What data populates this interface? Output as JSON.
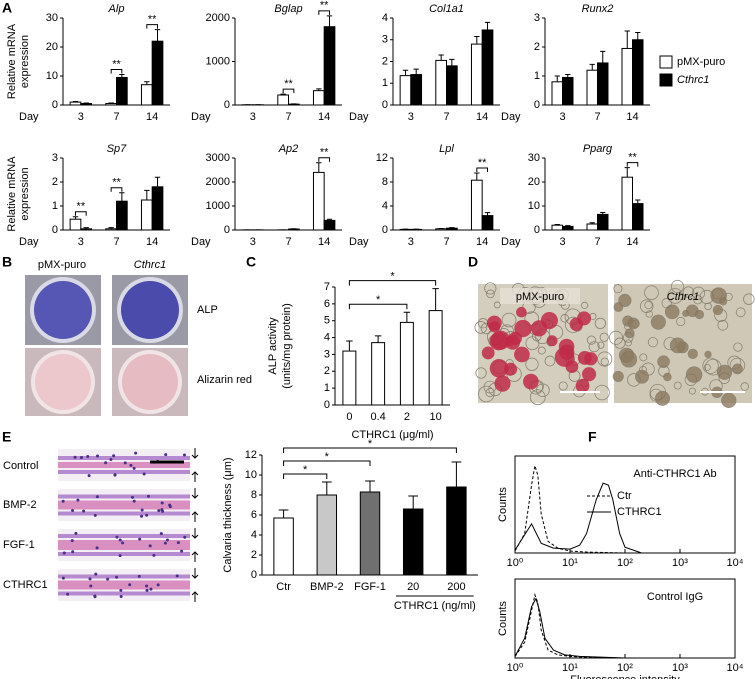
{
  "panel_labels": [
    "A",
    "B",
    "C",
    "D",
    "E",
    "F"
  ],
  "panel_b": {
    "columns": [
      "pMX-puro",
      "Cthrc1"
    ],
    "rows": [
      "ALP",
      "Alizarin red"
    ]
  },
  "panel_d": {
    "columns": [
      "pMX-puro",
      "Cthrc1"
    ]
  },
  "panel_e": {
    "rows": [
      "Control",
      "BMP-2",
      "FGF-1",
      "CTHRC1"
    ]
  },
  "chart_data": [
    {
      "type": "bar",
      "title": "Alp",
      "title_style": "italic",
      "xlabel": "Day",
      "ylabel": [
        "Relative mRNA",
        "expression"
      ],
      "categories": [
        "3",
        "7",
        "14"
      ],
      "ylim": [
        0,
        30
      ],
      "yticks": [
        0,
        10,
        20,
        30
      ],
      "series": [
        {
          "name": "pMX-puro",
          "color": "#ffffff",
          "values": [
            1,
            0.5,
            7
          ],
          "errors": [
            0.2,
            0.2,
            1
          ]
        },
        {
          "name": "Cthrc1",
          "italic": true,
          "color": "#000000",
          "values": [
            0.5,
            9.5,
            22
          ],
          "errors": [
            0.2,
            1,
            4
          ]
        }
      ],
      "annotations": [
        {
          "text": "**",
          "category": "7"
        },
        {
          "text": "**",
          "category": "14"
        }
      ]
    },
    {
      "type": "bar",
      "title": "Bglap",
      "title_style": "italic",
      "xlabel": "Day",
      "categories": [
        "3",
        "7",
        "14"
      ],
      "ylim": [
        0,
        2000
      ],
      "yticks": [
        0,
        1000,
        2000
      ],
      "series": [
        {
          "color": "#ffffff",
          "values": [
            5,
            230,
            330
          ],
          "errors": [
            2,
            20,
            40
          ]
        },
        {
          "color": "#000000",
          "values": [
            5,
            20,
            1800
          ],
          "errors": [
            2,
            5,
            250
          ]
        }
      ],
      "annotations": [
        {
          "text": "**",
          "category": "7"
        },
        {
          "text": "**",
          "category": "14"
        }
      ]
    },
    {
      "type": "bar",
      "title": "Col1a1",
      "title_style": "italic",
      "xlabel": "Day",
      "categories": [
        "3",
        "7",
        "14"
      ],
      "ylim": [
        0,
        4
      ],
      "yticks": [
        0,
        1,
        2,
        3,
        4
      ],
      "series": [
        {
          "color": "#ffffff",
          "values": [
            1.35,
            2.05,
            2.8
          ],
          "errors": [
            0.25,
            0.25,
            0.35
          ]
        },
        {
          "color": "#000000",
          "values": [
            1.4,
            1.8,
            3.45
          ],
          "errors": [
            0.25,
            0.3,
            0.35
          ]
        }
      ]
    },
    {
      "type": "bar",
      "title": "Runx2",
      "title_style": "italic",
      "xlabel": "Day",
      "categories": [
        "3",
        "7",
        "14"
      ],
      "ylim": [
        0,
        3
      ],
      "yticks": [
        0,
        1,
        2,
        3
      ],
      "series": [
        {
          "color": "#ffffff",
          "values": [
            0.8,
            1.2,
            1.95
          ],
          "errors": [
            0.2,
            0.2,
            0.6
          ]
        },
        {
          "color": "#000000",
          "values": [
            0.95,
            1.45,
            2.25
          ],
          "errors": [
            0.1,
            0.4,
            0.25
          ]
        }
      ]
    },
    {
      "type": "bar",
      "title": "Sp7",
      "title_style": "italic",
      "xlabel": "Day",
      "ylabel": [
        "Relative mRNA",
        "expression"
      ],
      "categories": [
        "3",
        "7",
        "14"
      ],
      "ylim": [
        0,
        3
      ],
      "yticks": [
        0,
        1,
        2,
        3
      ],
      "series": [
        {
          "color": "#ffffff",
          "values": [
            0.45,
            0.05,
            1.25
          ],
          "errors": [
            0.1,
            0.05,
            0.4
          ]
        },
        {
          "color": "#000000",
          "values": [
            0.05,
            1.2,
            1.8
          ],
          "errors": [
            0.05,
            0.35,
            0.4
          ]
        }
      ],
      "annotations": [
        {
          "text": "**",
          "category": "3"
        },
        {
          "text": "**",
          "category": "7"
        }
      ]
    },
    {
      "type": "bar",
      "title": "Ap2",
      "title_style": "italic",
      "xlabel": "Day",
      "categories": [
        "3",
        "7",
        "14"
      ],
      "ylim": [
        0,
        3000
      ],
      "yticks": [
        0,
        1000,
        2000,
        3000
      ],
      "series": [
        {
          "color": "#ffffff",
          "values": [
            5,
            5,
            2400
          ],
          "errors": [
            2,
            2,
            400
          ]
        },
        {
          "color": "#000000",
          "values": [
            5,
            40,
            400
          ],
          "errors": [
            2,
            10,
            50
          ]
        }
      ],
      "annotations": [
        {
          "text": "**",
          "category": "14"
        }
      ]
    },
    {
      "type": "bar",
      "title": "Lpl",
      "title_style": "italic",
      "xlabel": "Day",
      "categories": [
        "3",
        "7",
        "14"
      ],
      "ylim": [
        0,
        12
      ],
      "yticks": [
        0,
        4,
        8,
        12
      ],
      "series": [
        {
          "color": "#ffffff",
          "values": [
            0.1,
            0.2,
            8.3
          ],
          "errors": [
            0.05,
            0.05,
            1.2
          ]
        },
        {
          "color": "#000000",
          "values": [
            0.1,
            0.3,
            2.4
          ],
          "errors": [
            0.05,
            0.1,
            0.5
          ]
        }
      ],
      "annotations": [
        {
          "text": "**",
          "category": "14"
        }
      ]
    },
    {
      "type": "bar",
      "title": "Pparg",
      "title_style": "italic",
      "xlabel": "Day",
      "categories": [
        "3",
        "7",
        "14"
      ],
      "ylim": [
        0,
        30
      ],
      "yticks": [
        0,
        10,
        20,
        30
      ],
      "series": [
        {
          "color": "#ffffff",
          "values": [
            2,
            2.5,
            22
          ],
          "errors": [
            0.3,
            0.5,
            4
          ]
        },
        {
          "color": "#000000",
          "values": [
            1.5,
            6.5,
            11
          ],
          "errors": [
            0.3,
            0.8,
            1.5
          ]
        }
      ],
      "annotations": [
        {
          "text": "**",
          "category": "14"
        }
      ]
    },
    {
      "type": "bar",
      "xlabel": "CTHRC1 (μg/ml)",
      "ylabel": [
        "ALP activity",
        "(units/mg protein)"
      ],
      "categories": [
        "0",
        "0.4",
        "2",
        "10"
      ],
      "values": [
        3.2,
        3.7,
        4.9,
        5.6
      ],
      "errors": [
        0.6,
        0.4,
        0.6,
        1.3
      ],
      "color": "#ffffff",
      "ylim": [
        0,
        7
      ],
      "yticks": [
        0,
        1,
        2,
        3,
        4,
        5,
        6,
        7
      ],
      "brackets": [
        {
          "text": "*",
          "from": "0",
          "to": "2"
        },
        {
          "text": "*",
          "from": "0",
          "to": "10"
        }
      ]
    },
    {
      "type": "bar",
      "ylabel": [
        "Calvaria thickness (μm)"
      ],
      "categories": [
        "Ctr",
        "BMP-2",
        "FGF-1",
        "20",
        "200"
      ],
      "values": [
        5.7,
        8.0,
        8.3,
        6.6,
        8.8
      ],
      "errors": [
        0.8,
        1.3,
        1.1,
        1.3,
        2.5
      ],
      "colors": [
        "#ffffff",
        "#c8c8c8",
        "#707070",
        "#000000",
        "#000000"
      ],
      "ylim": [
        0,
        12
      ],
      "yticks": [
        0,
        2,
        4,
        6,
        8,
        10,
        12
      ],
      "group_label": {
        "text": "CTHRC1 (ng/ml)",
        "categories": [
          "20",
          "200"
        ]
      },
      "brackets": [
        {
          "text": "*",
          "from": "Ctr",
          "to": "BMP-2"
        },
        {
          "text": "*",
          "from": "Ctr",
          "to": "FGF-1"
        },
        {
          "text": "*",
          "from": "Ctr",
          "to": "200"
        }
      ]
    },
    {
      "type": "line",
      "title": "Anti-CTHRC1 Ab",
      "ylabel": "Counts",
      "xscale": "log",
      "xlim": [
        1,
        10000
      ],
      "xticks": [
        {
          "value": 1,
          "label": "10⁰"
        },
        {
          "value": 10,
          "label": "10¹"
        },
        {
          "value": 100,
          "label": "10²"
        },
        {
          "value": 1000,
          "label": "10³"
        },
        {
          "value": 10000,
          "label": "10⁴"
        }
      ],
      "ylim": [
        0,
        100
      ],
      "series": [
        {
          "name": "Ctr",
          "dash": true,
          "color": "#000000",
          "x": [
            1,
            1.5,
            2,
            2.3,
            2.6,
            3,
            4,
            6,
            10,
            20,
            100
          ],
          "values": [
            2,
            20,
            70,
            90,
            80,
            40,
            12,
            5,
            2,
            1,
            0
          ]
        },
        {
          "name": "CTHRC1",
          "dash": false,
          "color": "#000000",
          "x": [
            1,
            2,
            3,
            5,
            10,
            15,
            20,
            30,
            40,
            50,
            60,
            80,
            100,
            200
          ],
          "values": [
            3,
            30,
            10,
            5,
            4,
            8,
            20,
            55,
            72,
            70,
            55,
            20,
            6,
            0
          ]
        }
      ]
    },
    {
      "type": "line",
      "title": "Control IgG",
      "ylabel": "Counts",
      "xlabel": "Fluorescence intensity",
      "xscale": "log",
      "xlim": [
        1,
        10000
      ],
      "xticks": [
        {
          "value": 1,
          "label": "10⁰"
        },
        {
          "value": 10,
          "label": "10¹"
        },
        {
          "value": 100,
          "label": "10²"
        },
        {
          "value": 1000,
          "label": "10³"
        },
        {
          "value": 10000,
          "label": "10⁴"
        }
      ],
      "ylim": [
        0,
        100
      ],
      "series": [
        {
          "dash": true,
          "color": "#000000",
          "x": [
            1,
            1.5,
            2,
            2.3,
            2.6,
            3,
            4,
            6,
            10,
            20,
            100
          ],
          "values": [
            2,
            20,
            60,
            80,
            70,
            35,
            10,
            4,
            2,
            1,
            0
          ]
        },
        {
          "dash": false,
          "color": "#000000",
          "x": [
            1,
            1.5,
            2,
            2.4,
            2.8,
            3.5,
            5,
            8,
            15,
            100
          ],
          "values": [
            2,
            25,
            65,
            75,
            60,
            25,
            10,
            4,
            2,
            0
          ]
        }
      ]
    }
  ]
}
